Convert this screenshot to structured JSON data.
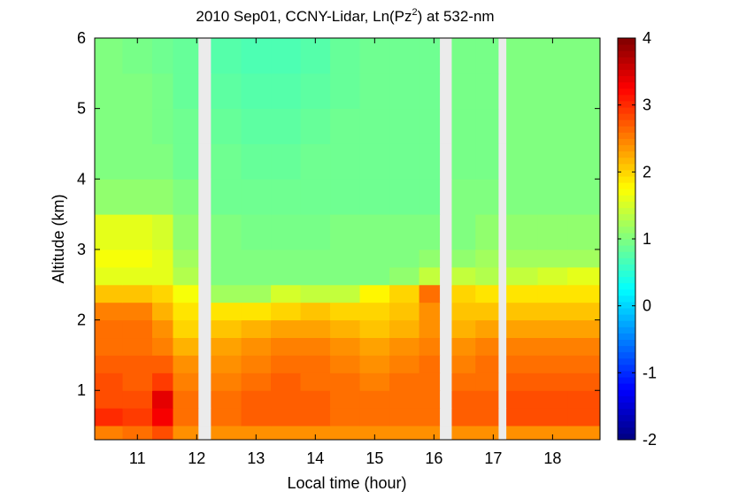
{
  "chart_data": {
    "type": "heatmap",
    "title": [
      "2010 Sep01, CCNY-Lidar, Ln(Pz",
      "2",
      ") at 532-nm"
    ],
    "xlabel": "Local time (hour)",
    "ylabel": "Altitude (km)",
    "xlim": [
      10.28,
      18.8
    ],
    "xticks": [
      11,
      12,
      13,
      14,
      15,
      16,
      17,
      18
    ],
    "ylim": [
      0.3,
      6
    ],
    "yticks": [
      1,
      2,
      3,
      4,
      5,
      6
    ],
    "colormap": "jet",
    "clim": [
      -2,
      4
    ],
    "cticks": [
      -2,
      -1,
      0,
      1,
      2,
      3,
      4
    ],
    "x_edges": [
      10.28,
      10.75,
      11.25,
      11.6,
      12.03,
      12.24,
      12.75,
      13.25,
      13.75,
      14.25,
      14.75,
      15.25,
      15.75,
      16.1,
      16.3,
      16.7,
      17.09,
      17.22,
      17.75,
      18.25,
      18.8
    ],
    "y_edges": [
      0.3,
      0.5,
      0.75,
      1.0,
      1.25,
      1.5,
      1.75,
      2.0,
      2.25,
      2.5,
      2.75,
      3.0,
      3.5,
      4.0,
      4.5,
      5.0,
      5.5,
      6.0
    ],
    "values": [
      [
        2.5,
        2.6,
        2.8,
        2.4,
        null,
        2.4,
        2.4,
        2.4,
        2.4,
        2.4,
        2.4,
        2.4,
        2.4,
        null,
        2.4,
        2.4,
        null,
        2.4,
        2.4,
        2.4
      ],
      [
        3.0,
        2.9,
        3.3,
        2.6,
        null,
        2.6,
        2.7,
        2.7,
        2.7,
        2.6,
        2.6,
        2.6,
        2.6,
        null,
        2.7,
        2.7,
        null,
        2.8,
        2.8,
        2.8
      ],
      [
        2.8,
        2.8,
        3.4,
        2.6,
        null,
        2.6,
        2.7,
        2.7,
        2.7,
        2.6,
        2.6,
        2.6,
        2.6,
        null,
        2.7,
        2.7,
        null,
        2.8,
        2.8,
        2.8
      ],
      [
        2.8,
        2.7,
        2.9,
        2.5,
        null,
        2.5,
        2.6,
        2.7,
        2.6,
        2.6,
        2.5,
        2.6,
        2.6,
        null,
        2.6,
        2.6,
        null,
        2.7,
        2.7,
        2.7
      ],
      [
        2.7,
        2.7,
        2.7,
        2.4,
        null,
        2.4,
        2.5,
        2.6,
        2.6,
        2.5,
        2.4,
        2.5,
        2.6,
        null,
        2.5,
        2.6,
        null,
        2.6,
        2.6,
        2.6
      ],
      [
        2.6,
        2.6,
        2.5,
        2.2,
        null,
        2.3,
        2.4,
        2.5,
        2.5,
        2.4,
        2.3,
        2.4,
        2.5,
        null,
        2.4,
        2.5,
        null,
        2.5,
        2.5,
        2.5
      ],
      [
        2.6,
        2.6,
        2.4,
        2.0,
        null,
        2.1,
        2.2,
        2.3,
        2.3,
        2.2,
        2.1,
        2.2,
        2.4,
        null,
        2.2,
        2.3,
        null,
        2.3,
        2.3,
        2.3
      ],
      [
        2.5,
        2.5,
        2.2,
        1.9,
        null,
        1.9,
        1.9,
        2.0,
        2.1,
        2.0,
        2.0,
        2.1,
        2.4,
        null,
        2.1,
        2.1,
        null,
        2.1,
        2.1,
        2.1
      ],
      [
        2.1,
        2.1,
        2.0,
        1.7,
        null,
        1.2,
        1.2,
        1.5,
        1.4,
        1.4,
        1.8,
        2.0,
        2.6,
        null,
        2.0,
        1.9,
        null,
        1.9,
        1.9,
        1.9
      ],
      [
        1.6,
        1.6,
        1.6,
        1.3,
        null,
        1.0,
        1.0,
        1.0,
        1.0,
        1.0,
        1.0,
        1.1,
        1.4,
        null,
        1.4,
        1.3,
        null,
        1.4,
        1.5,
        1.6
      ],
      [
        1.7,
        1.7,
        1.6,
        1.2,
        null,
        1.0,
        1.0,
        1.0,
        1.0,
        1.0,
        1.0,
        1.0,
        1.1,
        null,
        1.1,
        1.2,
        null,
        1.2,
        1.2,
        1.2
      ],
      [
        1.6,
        1.6,
        1.5,
        1.1,
        null,
        1.0,
        0.95,
        0.95,
        0.95,
        1.0,
        1.0,
        1.0,
        1.0,
        null,
        1.0,
        1.1,
        null,
        1.1,
        1.1,
        1.1
      ],
      [
        1.1,
        1.1,
        1.1,
        1.0,
        null,
        0.9,
        0.9,
        0.9,
        0.9,
        0.9,
        0.9,
        0.9,
        0.9,
        null,
        1.0,
        1.0,
        null,
        1.0,
        1.0,
        1.0
      ],
      [
        1.0,
        1.0,
        1.0,
        0.9,
        null,
        0.9,
        0.85,
        0.85,
        0.9,
        0.9,
        0.9,
        0.9,
        0.9,
        null,
        0.95,
        0.95,
        null,
        1.0,
        1.0,
        1.0
      ],
      [
        1.0,
        1.0,
        0.95,
        0.9,
        null,
        0.85,
        0.8,
        0.8,
        0.85,
        0.9,
        0.9,
        0.9,
        0.9,
        null,
        0.95,
        0.95,
        null,
        1.0,
        1.0,
        1.0
      ],
      [
        1.0,
        1.0,
        0.95,
        0.85,
        null,
        0.8,
        0.75,
        0.75,
        0.8,
        0.85,
        0.9,
        0.9,
        0.9,
        null,
        0.95,
        0.95,
        null,
        1.0,
        1.0,
        1.0
      ],
      [
        1.0,
        0.95,
        0.9,
        0.85,
        null,
        0.75,
        0.7,
        0.7,
        0.75,
        0.85,
        0.9,
        0.9,
        0.9,
        null,
        0.95,
        0.95,
        null,
        1.0,
        1.0,
        1.0
      ]
    ]
  }
}
